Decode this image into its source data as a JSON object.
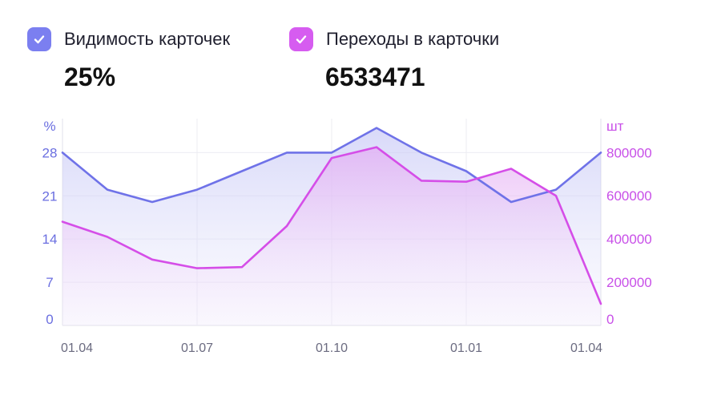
{
  "legend": [
    {
      "label": "Видимость карточек",
      "value": "25%",
      "color": "#7b7ff0"
    },
    {
      "label": "Переходы в карточки",
      "value": "6533471",
      "color": "#d65cf0"
    }
  ],
  "chart_data": {
    "type": "area",
    "x": [
      "01.04",
      "",
      "",
      "01.07",
      "",
      "",
      "01.10",
      "",
      "",
      "01.01",
      "",
      "",
      "01.04"
    ],
    "x_tick_labels": [
      "01.04",
      "01.07",
      "01.10",
      "01.01",
      "01.04"
    ],
    "y_left": {
      "unit_label": "%",
      "ticks": [
        "0",
        "7",
        "14",
        "21",
        "28"
      ],
      "range": [
        0,
        33.5
      ],
      "color": "#6a6ee0"
    },
    "y_right": {
      "unit_label": "шт",
      "ticks": [
        "0",
        "200000",
        "400000",
        "600000",
        "800000"
      ],
      "range": [
        0,
        957000
      ],
      "color": "#c84fe8"
    },
    "series": [
      {
        "name": "Видимость карточек",
        "axis": "left",
        "color": "#6f72e8",
        "fill_top": "#c9c9f7",
        "x_index": [
          0,
          1,
          2,
          3,
          4,
          5,
          6,
          7,
          8,
          9,
          10,
          11,
          12
        ],
        "values": [
          28,
          22,
          20,
          22,
          25,
          28,
          28,
          32,
          28,
          25,
          20,
          22,
          28
        ]
      },
      {
        "name": "Переходы в карточки",
        "axis": "right",
        "color": "#d54ee8",
        "fill_top": "#e8b8f5",
        "x_index": [
          0,
          1,
          2,
          3,
          4,
          5,
          6,
          7,
          8,
          9,
          10,
          11,
          12
        ],
        "values": [
          480000,
          410000,
          305000,
          265000,
          270000,
          460000,
          775000,
          825000,
          670000,
          665000,
          725000,
          600000,
          100000
        ]
      }
    ],
    "grid": true
  }
}
